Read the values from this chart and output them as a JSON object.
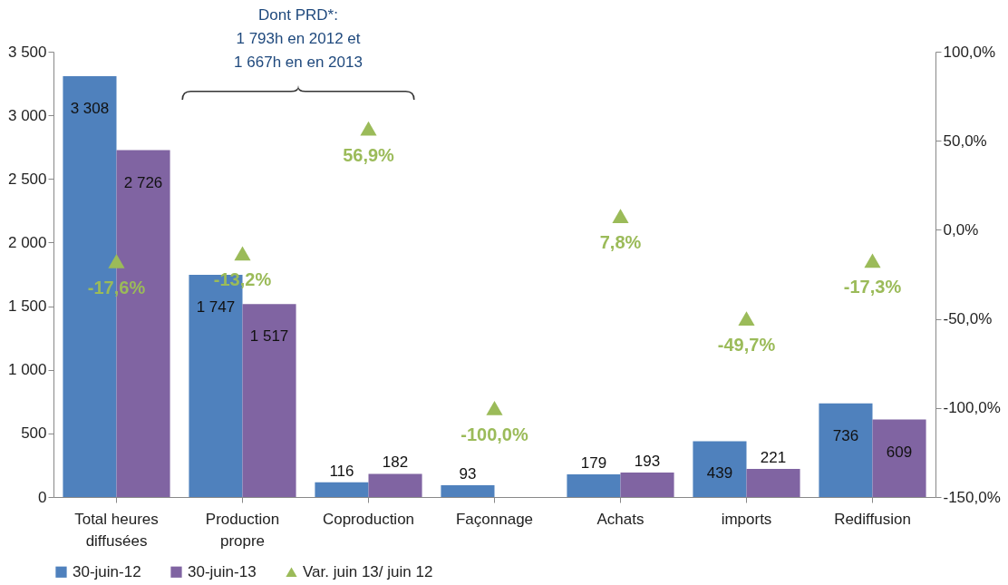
{
  "chart_data": {
    "type": "bar",
    "categories": [
      "Total heures\ndiffusées",
      "Production\npropre",
      "Coproduction",
      "Façonnage",
      "Achats",
      "imports",
      "Rediffusion"
    ],
    "series": [
      {
        "name": "30-juin-12",
        "type": "bar",
        "color": "#4f81bd",
        "values": [
          3308,
          1747,
          116,
          93,
          179,
          439,
          736
        ]
      },
      {
        "name": "30-juin-13",
        "type": "bar",
        "color": "#8064a2",
        "values": [
          2726,
          1517,
          182,
          null,
          193,
          221,
          609
        ]
      },
      {
        "name": "Var. juin 13/ juin 12",
        "type": "scatter",
        "axis": "y2",
        "marker": "triangle",
        "color": "#9bbb59",
        "values": [
          -17.6,
          -13.2,
          56.9,
          -100.0,
          7.8,
          -49.7,
          -17.3
        ],
        "value_labels": [
          "-17,6%",
          "-13,2%",
          "56,9%",
          "-100,0%",
          "7,8%",
          "-49,7%",
          "-17,3%"
        ]
      }
    ],
    "ylim": [
      0,
      3500
    ],
    "yticks": [
      0,
      500,
      {
        "value": 1000,
        "label": "1 000"
      },
      {
        "value": 1500,
        "label": "1 500"
      },
      {
        "value": 2000,
        "label": "2 000"
      },
      {
        "value": 2500,
        "label": "2 500"
      },
      {
        "value": 3000,
        "label": "3 000"
      },
      {
        "value": 3500,
        "label": "3 500"
      }
    ],
    "y2lim": [
      -150,
      100
    ],
    "y2ticks": [
      {
        "value": -150,
        "label": "-150,0%"
      },
      {
        "value": -100,
        "label": "-100,0%"
      },
      {
        "value": -50,
        "label": "-50,0%"
      },
      {
        "value": 0,
        "label": "0,0%"
      },
      {
        "value": 50,
        "label": "50,0%"
      },
      {
        "value": 100,
        "label": "100,0%"
      }
    ],
    "data_labels": true,
    "grid": false,
    "legend": "bottom",
    "annotations": [
      "Dont PRD*:\n1 793h en 2012 et\n1 667h en en 2013"
    ]
  }
}
